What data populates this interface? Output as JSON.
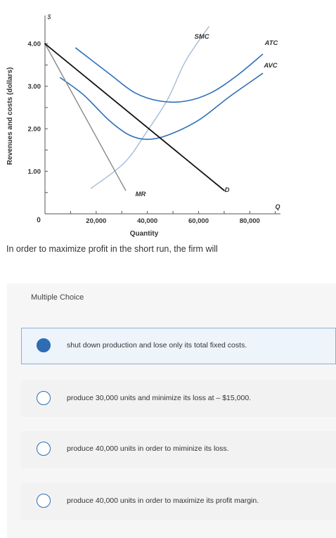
{
  "chart_data": {
    "type": "line",
    "ylabel": "Revenues and costs (dollars)",
    "xlabel": "Quantity",
    "y_unit_symbol": "$",
    "x_axis_end_label": "Q",
    "xlim": [
      0,
      92000
    ],
    "ylim": [
      0,
      4.3
    ],
    "x_ticks": [
      20000,
      40000,
      60000,
      80000
    ],
    "x_tick_labels": [
      "20,000",
      "40,000",
      "60,000",
      "80,000"
    ],
    "y_ticks": [
      1.0,
      2.0,
      3.0,
      4.0
    ],
    "y_tick_labels": [
      "1.00",
      "2.00",
      "3.00",
      "4.00"
    ],
    "origin_label": "0",
    "grid": false,
    "series": [
      {
        "name": "D",
        "color": "#111111",
        "points": [
          [
            0,
            4.0
          ],
          [
            70000,
            0.55
          ]
        ]
      },
      {
        "name": "MR",
        "color": "#888888",
        "points": [
          [
            0,
            4.0
          ],
          [
            31500,
            0.55
          ]
        ]
      },
      {
        "name": "SMC",
        "color": "#9bb8d6",
        "points": [
          [
            18000,
            0.6
          ],
          [
            31000,
            1.2
          ],
          [
            40000,
            1.95
          ],
          [
            48000,
            2.7
          ],
          [
            55000,
            3.6
          ],
          [
            64000,
            4.4
          ]
        ]
      },
      {
        "name": "ATC",
        "color": "#2f6fba",
        "points": [
          [
            12000,
            3.9
          ],
          [
            25000,
            3.3
          ],
          [
            35000,
            2.85
          ],
          [
            45000,
            2.65
          ],
          [
            55000,
            2.65
          ],
          [
            65000,
            2.85
          ],
          [
            75000,
            3.25
          ],
          [
            85000,
            3.75
          ]
        ]
      },
      {
        "name": "AVC",
        "color": "#2f6fba",
        "points": [
          [
            6000,
            3.2
          ],
          [
            15000,
            2.8
          ],
          [
            25000,
            2.2
          ],
          [
            33000,
            1.85
          ],
          [
            40000,
            1.75
          ],
          [
            48000,
            1.85
          ],
          [
            60000,
            2.2
          ],
          [
            72000,
            2.75
          ],
          [
            85000,
            3.3
          ]
        ]
      }
    ],
    "annotations": [
      "SMC",
      "ATC",
      "AVC",
      "MR",
      "D"
    ]
  },
  "question": {
    "text": "In order to maximize profit in the short run, the firm will"
  },
  "multiple_choice": {
    "title": "Multiple Choice",
    "choices": [
      {
        "label": "shut down production and lose only its total fixed costs.",
        "selected": true
      },
      {
        "label": "produce 30,000 units and minimize its loss at – $15,000.",
        "selected": false
      },
      {
        "label": "produce 40,000 units in order to miminize its loss.",
        "selected": false
      },
      {
        "label": "produce 40,000 units in order to maximize its profit margin.",
        "selected": false
      }
    ]
  }
}
